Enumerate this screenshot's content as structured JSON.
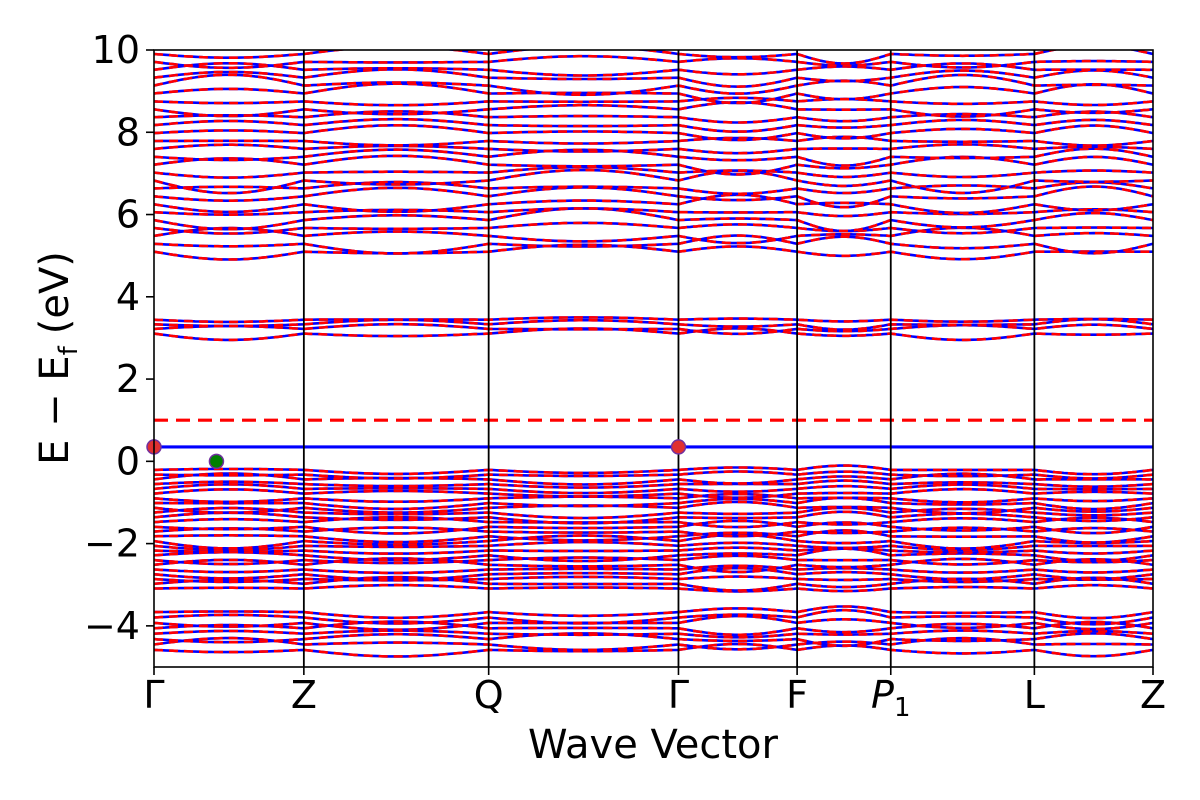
{
  "chart_data": {
    "type": "line",
    "title": "",
    "xlabel": "Wave Vector",
    "ylabel": "E − E_f (eV)",
    "ylabel_parts": {
      "main": "E − E",
      "sub": "f",
      "unit": "(eV)"
    },
    "ylim": [
      -5,
      10
    ],
    "yticks": [
      -4,
      -2,
      0,
      2,
      4,
      6,
      8,
      10
    ],
    "ytick_labels": [
      "−4",
      "−2",
      "0",
      "2",
      "4",
      "6",
      "8",
      "10"
    ],
    "xlim": [
      0,
      8
    ],
    "kpoints": [
      {
        "label": "Γ",
        "x": 0,
        "sub": ""
      },
      {
        "label": "Z",
        "x": 1.2,
        "sub": ""
      },
      {
        "label": "Q",
        "x": 2.68,
        "sub": ""
      },
      {
        "label": "Γ",
        "x": 4.2,
        "sub": ""
      },
      {
        "label": "F",
        "x": 5.15,
        "sub": ""
      },
      {
        "label": "P",
        "x": 5.9,
        "sub": "1"
      },
      {
        "label": "L",
        "x": 7.05,
        "sub": ""
      },
      {
        "label": "Z",
        "x": 8,
        "sub": ""
      }
    ],
    "grid": false,
    "legend": "none",
    "series": [
      {
        "style": "solid",
        "color": "#0000ff"
      },
      {
        "style": "dashed",
        "color": "#ff0000"
      }
    ],
    "band_groups": [
      {
        "emin": -4.65,
        "emax": -3.6,
        "count": 8
      },
      {
        "emin": -3.15,
        "emax": -0.15,
        "count": 26
      },
      {
        "emin": 3.05,
        "emax": 3.5,
        "count": 4
      },
      {
        "emin": 5.0,
        "emax": 10.0,
        "count": 26
      }
    ],
    "horizontal_lines": [
      {
        "y": 0.35,
        "color": "#0000ff",
        "style": "solid"
      },
      {
        "y": 1.0,
        "color": "#ff0000",
        "style": "dashed"
      }
    ],
    "markers": [
      {
        "x": 0,
        "y": 0.35,
        "color": "#e03030",
        "edge": "#7030a0"
      },
      {
        "x": 0.5,
        "y": 0.0,
        "color": "#008000",
        "edge": "#7030a0"
      },
      {
        "x": 4.2,
        "y": 0.35,
        "color": "#e03030",
        "edge": "#7030a0"
      }
    ]
  }
}
